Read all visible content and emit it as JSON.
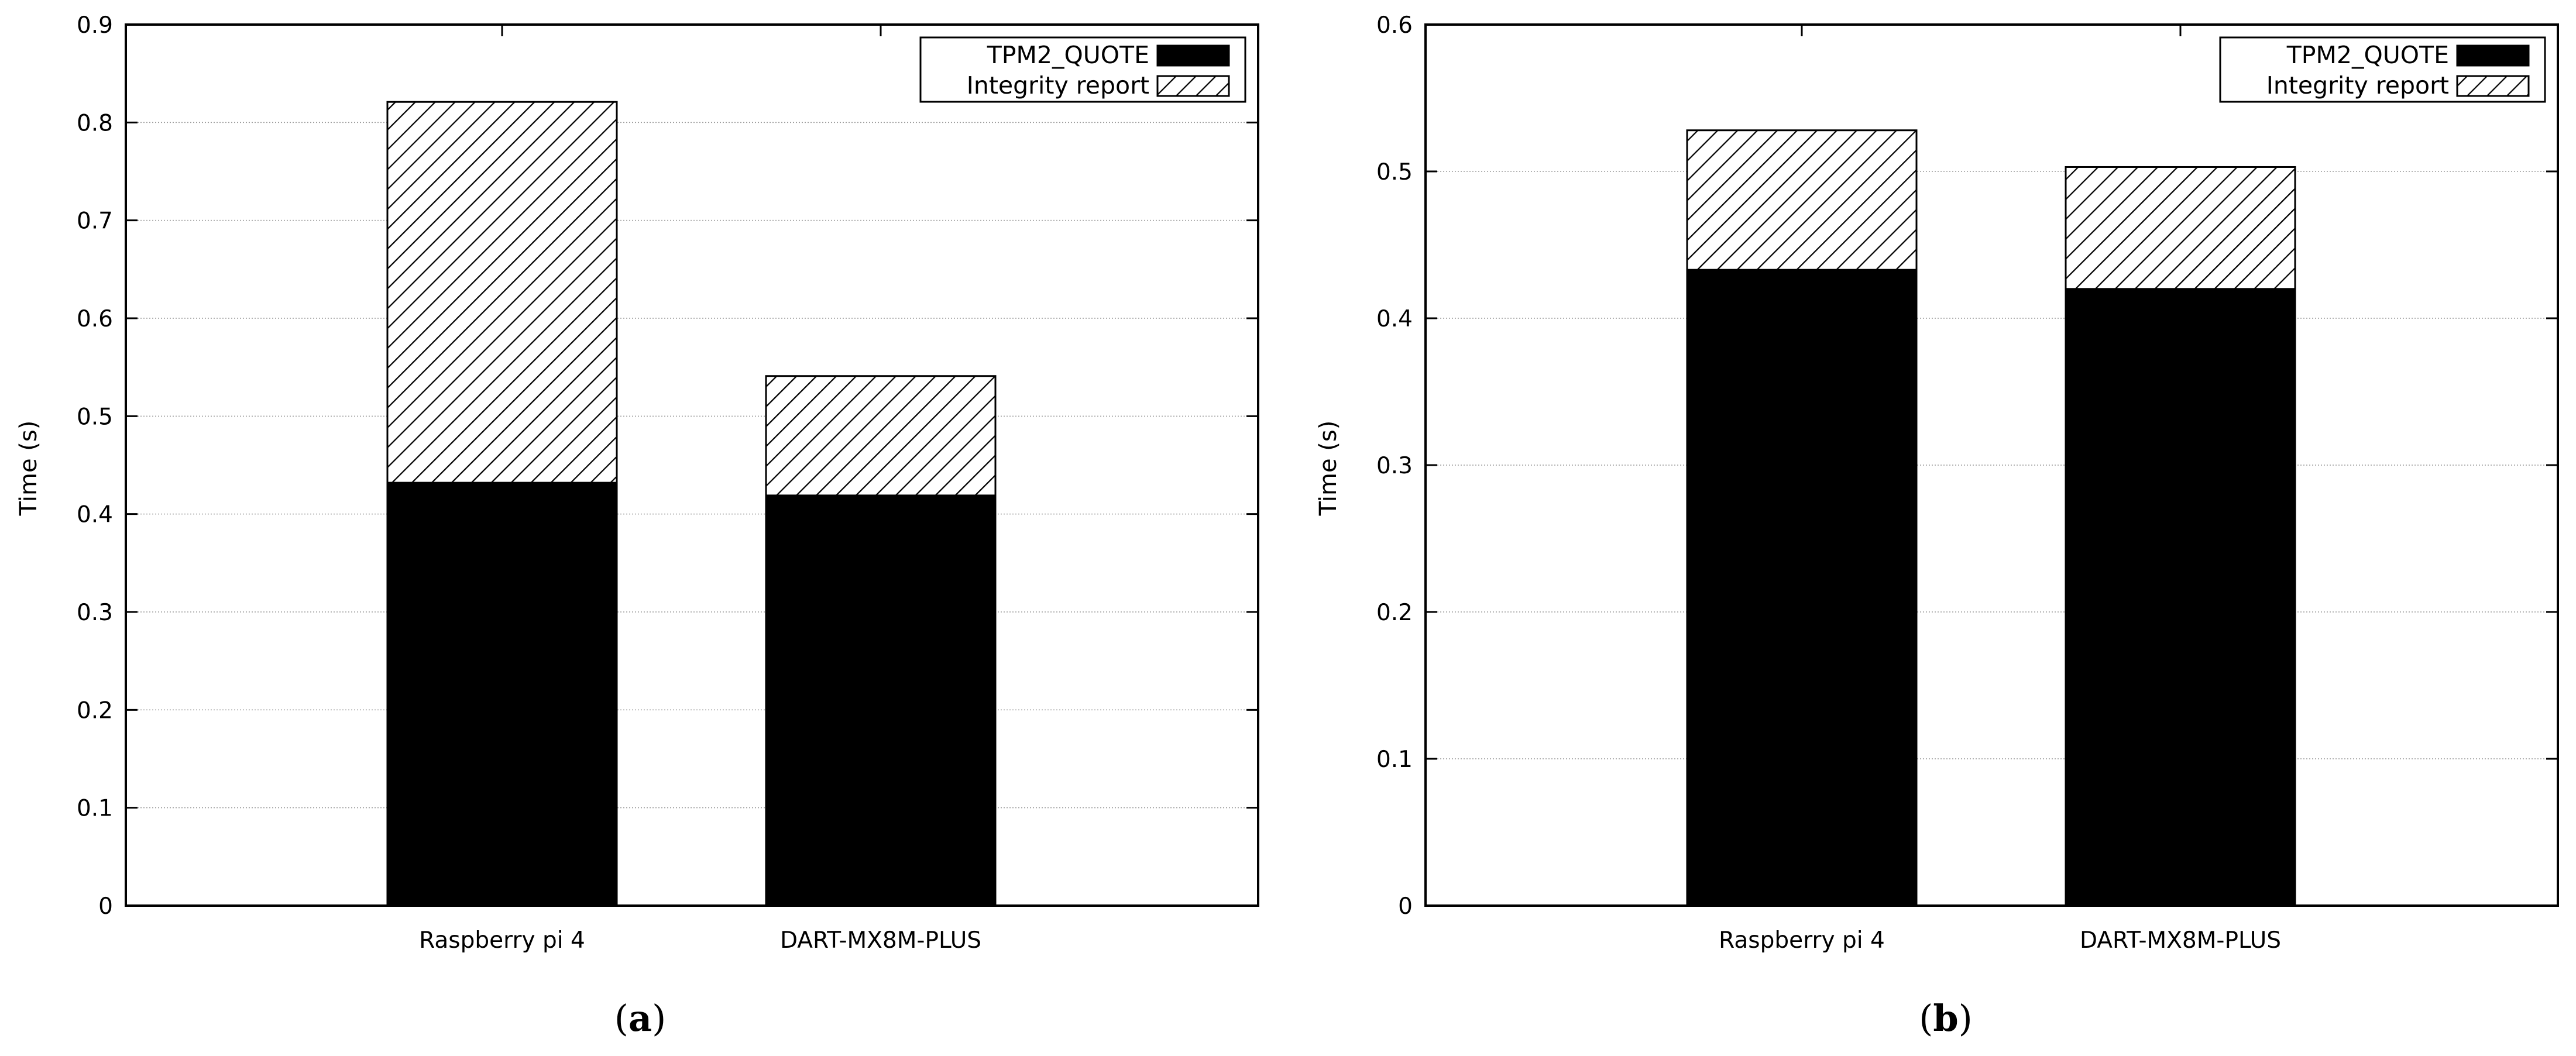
{
  "colors": {
    "primary_series": "#000000",
    "secondary_series_hatch": "#000000",
    "background": "#ffffff",
    "grid": "#999999"
  },
  "chart_data": [
    {
      "type": "bar",
      "stacked": true,
      "panel_label": "a",
      "categories": [
        "Raspberry pi 4",
        "DART-MX8M-PLUS"
      ],
      "series": [
        {
          "name": "TPM2_QUOTE",
          "values": [
            0.432,
            0.419
          ],
          "fill": "solid-black"
        },
        {
          "name": "Integrity report",
          "values": [
            0.389,
            0.122
          ],
          "fill": "diagonal-hatch"
        }
      ],
      "xlabel": "",
      "ylabel": "Time (s)",
      "ylim": [
        0,
        0.9
      ],
      "yticks": [
        0,
        0.1,
        0.2,
        0.3,
        0.4,
        0.5,
        0.6,
        0.7,
        0.8,
        0.9
      ],
      "ytick_labels": [
        "0",
        "0.1",
        "0.2",
        "0.3",
        "0.4",
        "0.5",
        "0.6",
        "0.7",
        "0.8",
        "0.9"
      ],
      "grid": "horizontal-dotted",
      "legend_position": "top-right"
    },
    {
      "type": "bar",
      "stacked": true,
      "panel_label": "b",
      "categories": [
        "Raspberry pi 4",
        "DART-MX8M-PLUS"
      ],
      "series": [
        {
          "name": "TPM2_QUOTE",
          "values": [
            0.433,
            0.42
          ],
          "fill": "solid-black"
        },
        {
          "name": "Integrity report",
          "values": [
            0.095,
            0.083
          ],
          "fill": "diagonal-hatch"
        }
      ],
      "xlabel": "",
      "ylabel": "Time (s)",
      "ylim": [
        0,
        0.6
      ],
      "yticks": [
        0,
        0.1,
        0.2,
        0.3,
        0.4,
        0.5,
        0.6
      ],
      "ytick_labels": [
        "0",
        "0.1",
        "0.2",
        "0.3",
        "0.4",
        "0.5",
        "0.6"
      ],
      "grid": "horizontal-dotted",
      "legend_position": "top-right"
    }
  ]
}
